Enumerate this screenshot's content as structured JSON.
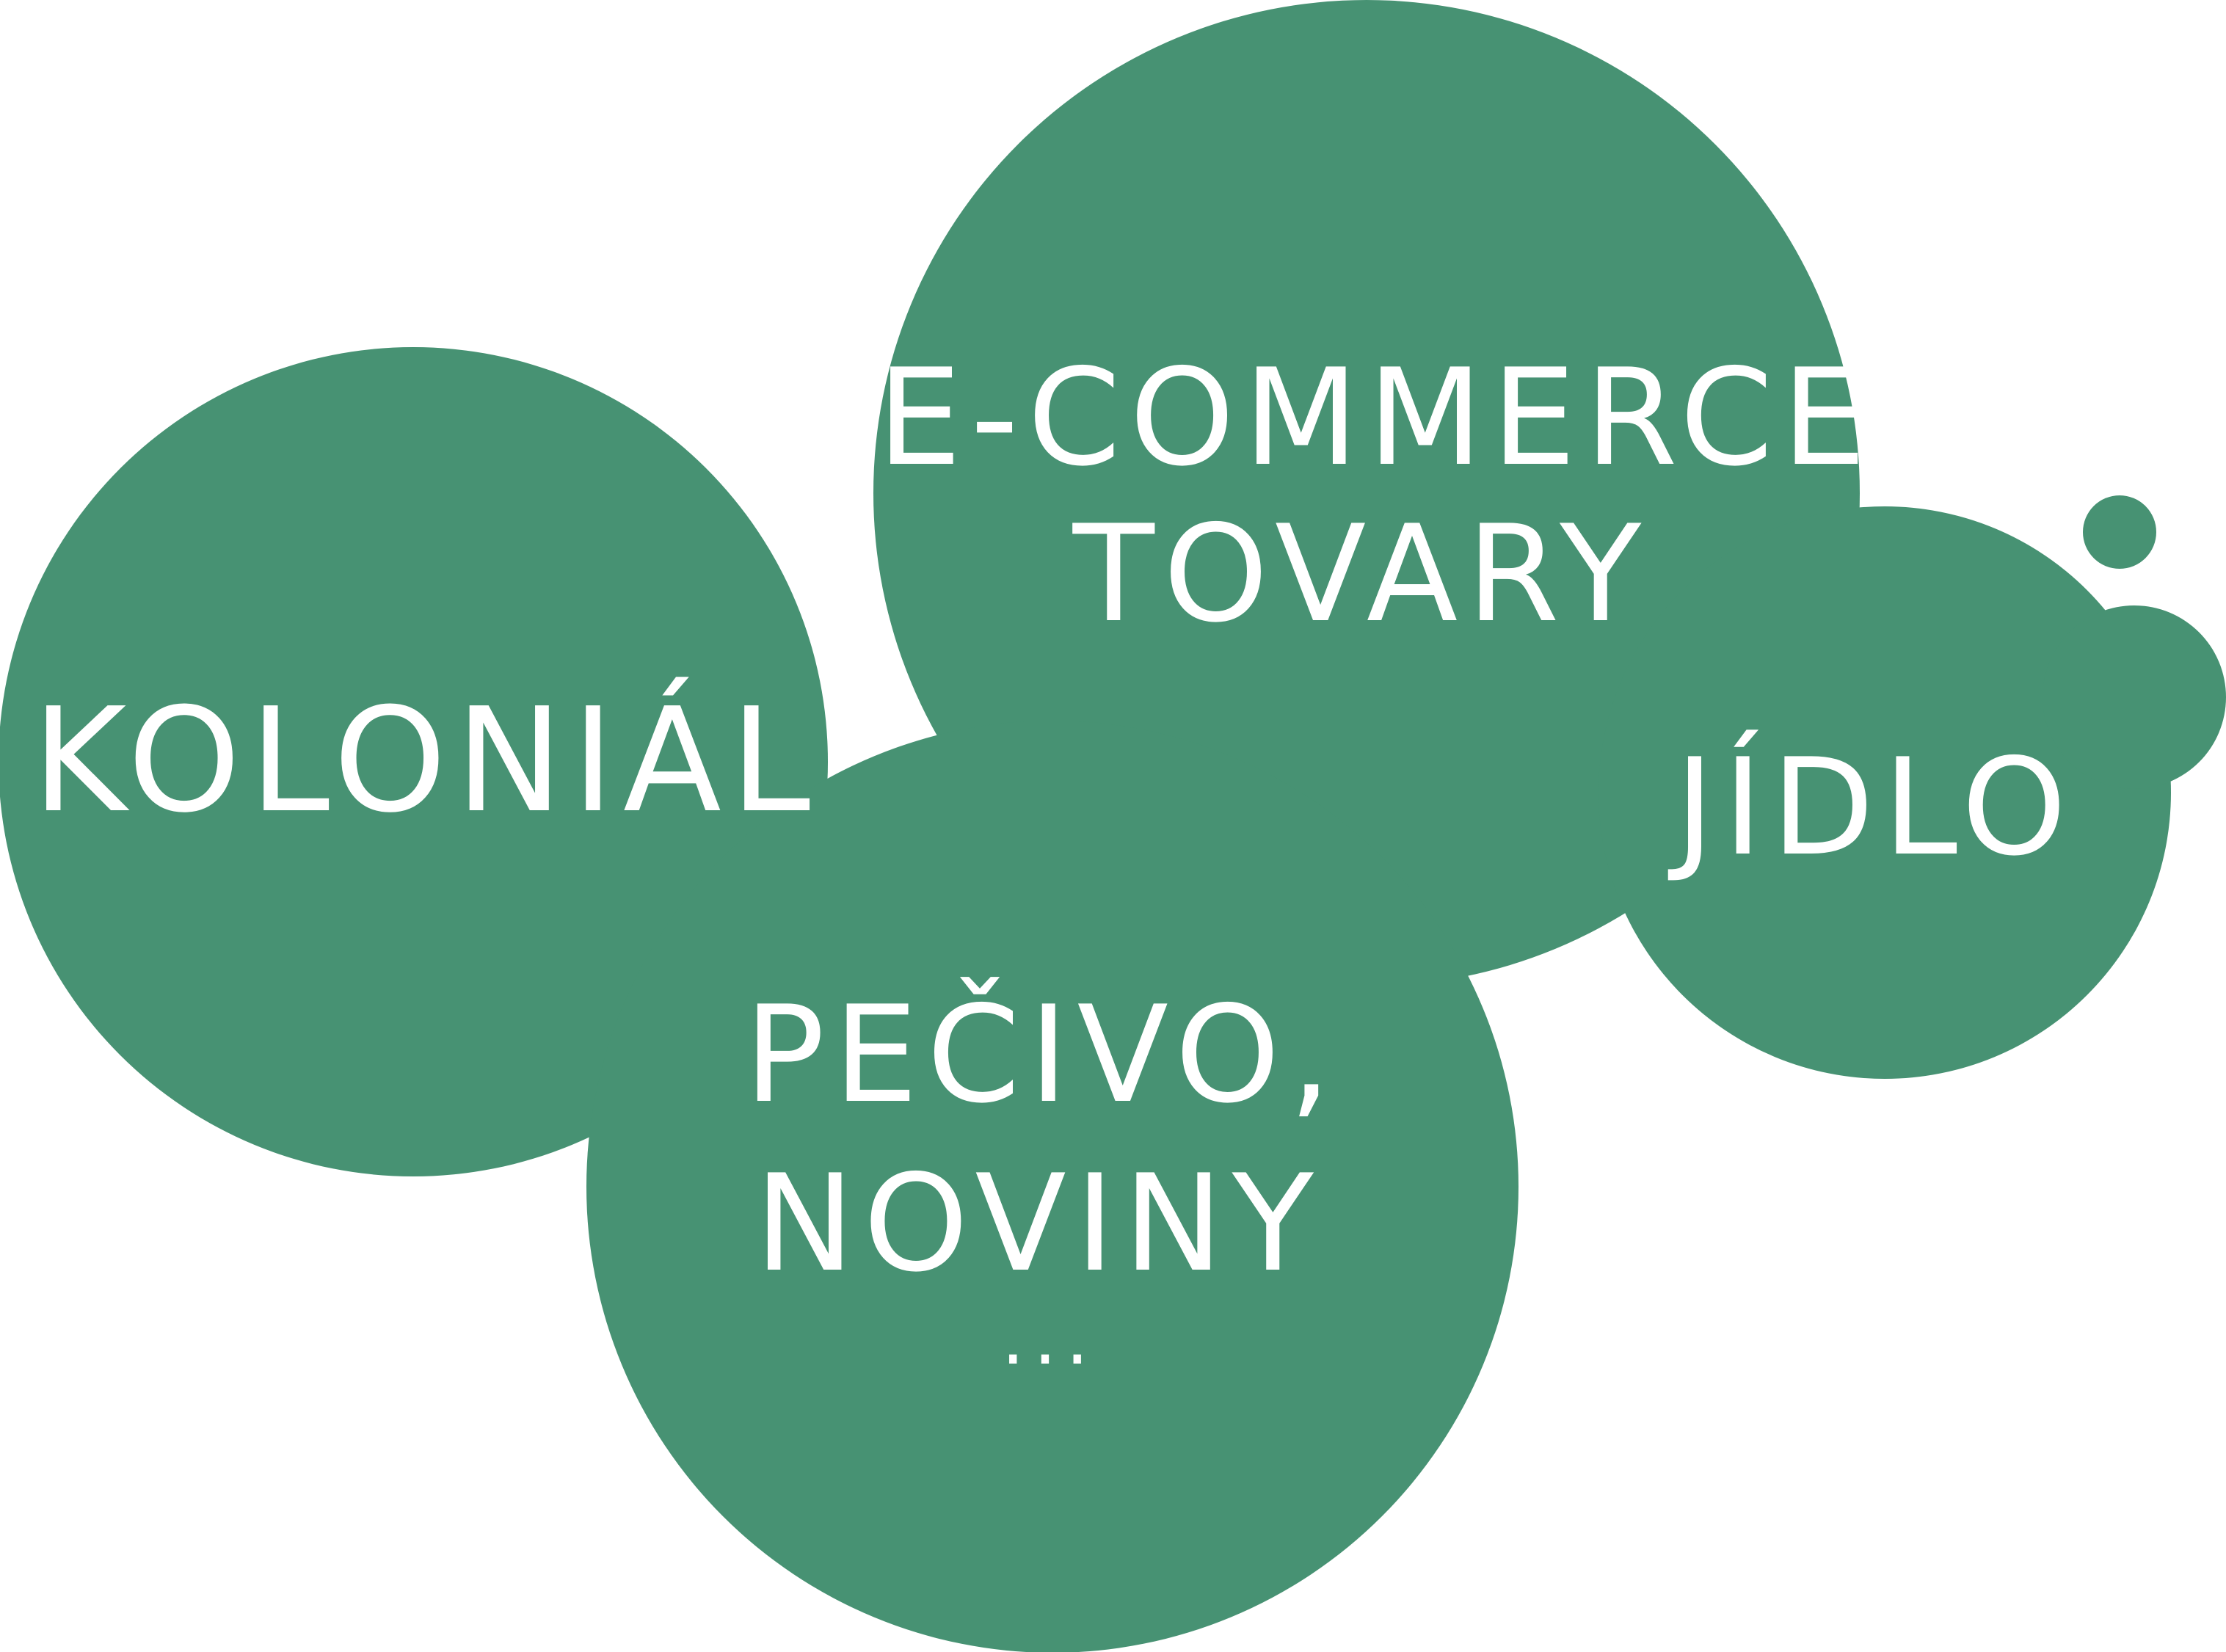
{
  "colors": {
    "bubble_fill": "#479273",
    "text": "#ffffff",
    "background": "#ffffff"
  },
  "bubbles": {
    "kolonial": {
      "label": "KOLONIÁL"
    },
    "ecommerce": {
      "line1": "E-COMMERCE",
      "line2": "TOVARY"
    },
    "jidlo": {
      "label": "JÍDLO"
    },
    "pecivo": {
      "line1": "PEČIVO,",
      "line2": "NOVINY",
      "line3": "..."
    }
  }
}
